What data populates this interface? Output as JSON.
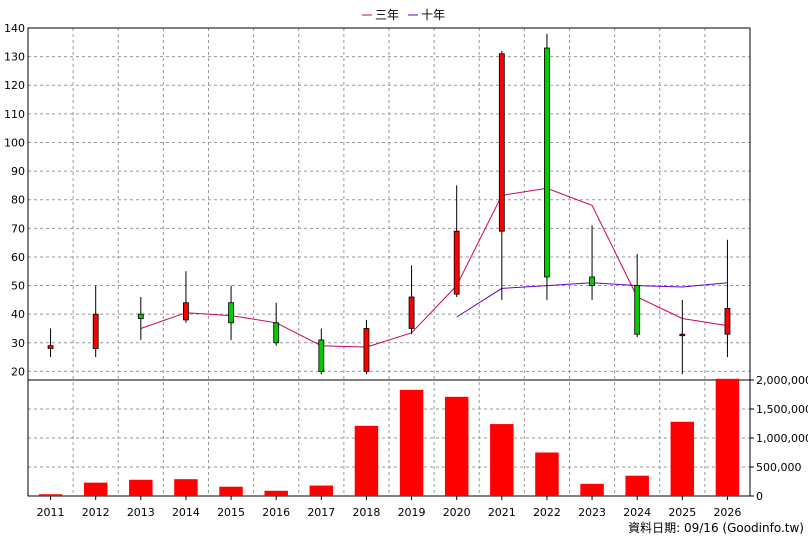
{
  "chart_data": {
    "type": "candlestick-with-volume",
    "legend": {
      "placement": "top-center",
      "entries": [
        {
          "label": "三年",
          "color": "#cc0066"
        },
        {
          "label": "十年",
          "color": "#6600cc"
        }
      ]
    },
    "x_labels": [
      "2011",
      "2012",
      "2013",
      "2014",
      "2015",
      "2016",
      "2017",
      "2018",
      "2019",
      "2020",
      "2021",
      "2022",
      "2023",
      "2024",
      "2025",
      "2026"
    ],
    "price_axis": {
      "ticks": [
        20,
        30,
        40,
        50,
        60,
        70,
        80,
        90,
        100,
        110,
        120,
        130,
        140
      ],
      "range": [
        17,
        140
      ]
    },
    "candles": [
      {
        "year": "2011",
        "open": 28,
        "close": 29,
        "high": 35,
        "low": 25
      },
      {
        "year": "2012",
        "open": 28,
        "close": 40,
        "high": 50,
        "low": 25
      },
      {
        "year": "2013",
        "open": 40,
        "close": 38.5,
        "high": 46,
        "low": 31
      },
      {
        "year": "2014",
        "open": 38,
        "close": 44,
        "high": 55,
        "low": 37
      },
      {
        "year": "2015",
        "open": 44,
        "close": 37,
        "high": 50,
        "low": 31
      },
      {
        "year": "2016",
        "open": 37,
        "close": 30,
        "high": 44,
        "low": 29
      },
      {
        "year": "2017",
        "open": 31,
        "close": 20,
        "high": 35,
        "low": 19
      },
      {
        "year": "2018",
        "open": 20,
        "close": 35,
        "high": 38,
        "low": 19
      },
      {
        "year": "2019",
        "open": 35,
        "close": 46,
        "high": 57,
        "low": 33
      },
      {
        "year": "2020",
        "open": 47,
        "close": 69,
        "high": 85,
        "low": 46
      },
      {
        "year": "2021",
        "open": 69,
        "close": 131,
        "high": 132,
        "low": 45
      },
      {
        "year": "2022",
        "open": 133,
        "close": 53,
        "high": 138,
        "low": 45
      },
      {
        "year": "2023",
        "open": 53,
        "close": 50,
        "high": 71,
        "low": 45
      },
      {
        "year": "2024",
        "open": 50,
        "close": 33,
        "high": 61,
        "low": 32
      },
      {
        "year": "2025",
        "open": 33,
        "close": 33,
        "high": 45,
        "low": 19
      },
      {
        "year": "2026",
        "open": 33,
        "close": 42,
        "high": 66,
        "low": 25
      }
    ],
    "series": [
      {
        "name": "三年",
        "color": "#cc0066",
        "x": [
          "2013",
          "2014",
          "2015",
          "2016",
          "2017",
          "2018",
          "2019",
          "2020",
          "2021",
          "2022",
          "2023",
          "2024",
          "2025",
          "2026"
        ],
        "values": [
          35,
          40.5,
          39.5,
          37,
          29,
          28.5,
          33.5,
          50,
          81.5,
          84,
          78,
          46,
          38.5,
          36
        ]
      },
      {
        "name": "十年",
        "color": "#6600cc",
        "x": [
          "2020",
          "2021",
          "2022",
          "2023",
          "2024",
          "2025",
          "2026"
        ],
        "values": [
          39,
          49,
          50,
          51,
          50,
          49.5,
          51
        ]
      }
    ],
    "volume": {
      "ticks": [
        0,
        500000,
        1000000,
        1500000,
        2000000
      ],
      "tick_labels": [
        "0",
        "500,000",
        "1,000,000",
        "1,500,000",
        "2,000,000"
      ],
      "range": [
        0,
        2000000
      ],
      "values": [
        30000,
        230000,
        280000,
        290000,
        160000,
        90000,
        180000,
        1210000,
        1830000,
        1710000,
        1240000,
        750000,
        210000,
        350000,
        1280000,
        2020000
      ]
    },
    "footer": "資料日期: 09/16 (Goodinfo.tw)"
  }
}
